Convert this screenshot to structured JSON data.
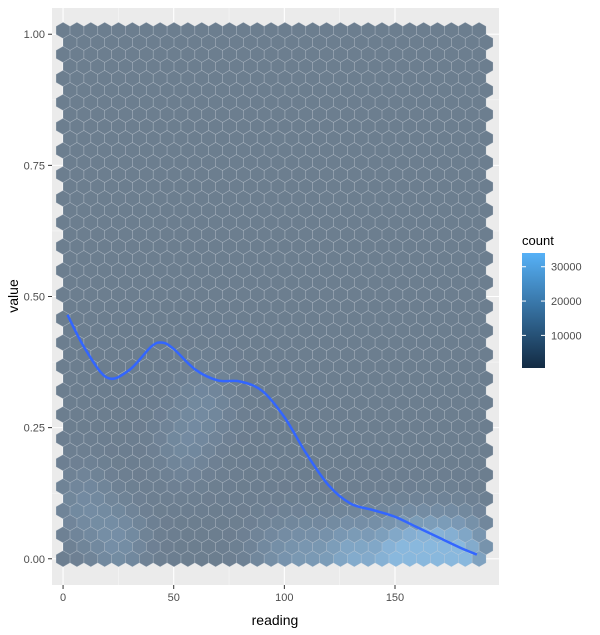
{
  "chart_data": {
    "type": "hexbin",
    "xlabel": "reading",
    "ylabel": "value",
    "xlim": [
      -5,
      197
    ],
    "ylim": [
      -0.05,
      1.05
    ],
    "x_ticks": [
      0,
      50,
      100,
      150
    ],
    "x_tick_labels": [
      "0",
      "50",
      "100",
      "150"
    ],
    "y_ticks": [
      0,
      0.25,
      0.5,
      0.75,
      1.0
    ],
    "y_tick_labels": [
      "0.00",
      "0.25",
      "0.50",
      "0.75",
      "1.00"
    ],
    "grid": true,
    "hexbin": {
      "x_range": [
        0,
        188
      ],
      "y_range": [
        0,
        1.0
      ],
      "bins": 30,
      "base_count": 2000,
      "hotspots": [
        {
          "x": 130,
          "y": 0.0,
          "count": 22000
        },
        {
          "x": 150,
          "y": 0.0,
          "count": 27000
        },
        {
          "x": 165,
          "y": 0.0,
          "count": 33000
        },
        {
          "x": 180,
          "y": 0.0,
          "count": 30000
        },
        {
          "x": 110,
          "y": 0.0,
          "count": 12000
        },
        {
          "x": 95,
          "y": 0.0,
          "count": 7000
        },
        {
          "x": 25,
          "y": 0.03,
          "count": 9000
        },
        {
          "x": 10,
          "y": 0.1,
          "count": 7000
        },
        {
          "x": 55,
          "y": 0.22,
          "count": 6000
        },
        {
          "x": 65,
          "y": 0.3,
          "count": 5500
        }
      ]
    },
    "smooth": {
      "x": [
        2,
        10,
        20,
        30,
        40,
        45,
        50,
        60,
        70,
        80,
        90,
        100,
        110,
        120,
        130,
        140,
        150,
        160,
        170,
        180,
        187
      ],
      "y": [
        0.465,
        0.4,
        0.345,
        0.36,
        0.405,
        0.412,
        0.4,
        0.36,
        0.34,
        0.338,
        0.32,
        0.27,
        0.2,
        0.14,
        0.105,
        0.093,
        0.08,
        0.06,
        0.04,
        0.02,
        0.008
      ],
      "color": "#3366FF"
    },
    "legend": {
      "title": "count",
      "breaks": [
        10000,
        20000,
        30000
      ],
      "labels": [
        "10000",
        "20000",
        "30000"
      ],
      "range": [
        500,
        34000
      ],
      "low_color": "#132B43",
      "high_color": "#56B1F7",
      "placement": "right"
    },
    "overlay_color": "#b4bec8",
    "overlay_opacity": 0.55,
    "panel_color": "#EBEBEB"
  }
}
